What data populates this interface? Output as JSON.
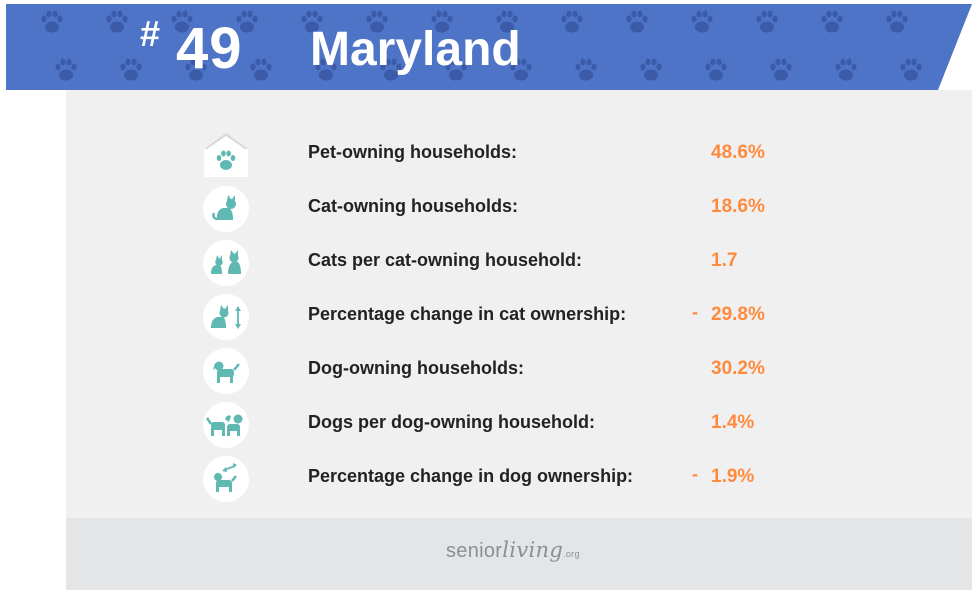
{
  "header": {
    "rank_hash": "#",
    "rank_number": "49",
    "state": "Maryland",
    "banner_color": "#4d74c6",
    "paw_color": "#3b5aa8"
  },
  "stats": [
    {
      "icon": "house-paw-icon",
      "label": "Pet-owning households:",
      "sign": "",
      "value": "48.6%"
    },
    {
      "icon": "cat-icon",
      "label": "Cat-owning households:",
      "sign": "",
      "value": "18.6%"
    },
    {
      "icon": "two-cats-icon",
      "label": "Cats per cat-owning household:",
      "sign": "",
      "value": "1.7"
    },
    {
      "icon": "cat-change-icon",
      "label": "Percentage change in cat ownership:",
      "sign": "-",
      "value": "29.8%"
    },
    {
      "icon": "dog-icon",
      "label": "Dog-owning households:",
      "sign": "",
      "value": "30.2%"
    },
    {
      "icon": "two-dogs-icon",
      "label": "Dogs per dog-owning household:",
      "sign": "",
      "value": "1.4%"
    },
    {
      "icon": "dog-change-icon",
      "label": "Percentage change in dog ownership:",
      "sign": "-",
      "value": "1.9%"
    }
  ],
  "footer": {
    "brand_senior": "senior",
    "brand_living": "living",
    "brand_org": ".org"
  },
  "colors": {
    "accent_orange": "#ff8a3d",
    "icon_teal": "#5fb8b2",
    "card_bg": "#f0f0f0"
  }
}
